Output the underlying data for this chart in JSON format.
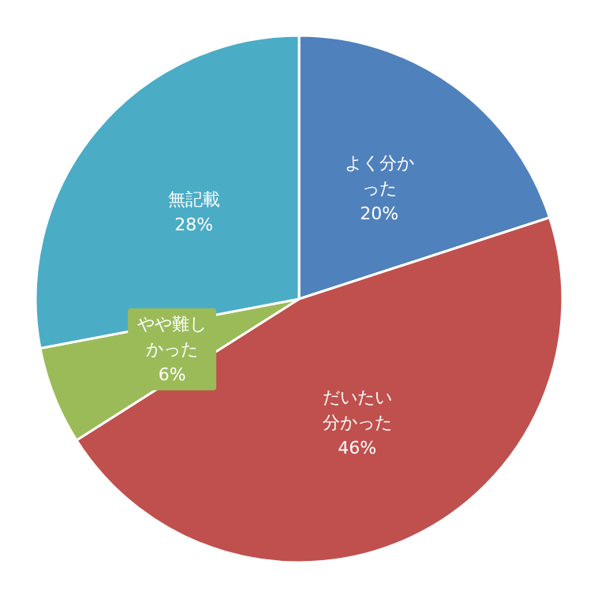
{
  "chart_data": {
    "type": "pie",
    "categories": [
      "よく分かった",
      "だいたい分かった",
      "やや難しかった",
      "無記載"
    ],
    "values": [
      20,
      46,
      6,
      28
    ],
    "value_labels": [
      "20%",
      "46%",
      "6%",
      "28%"
    ],
    "colors": [
      "#4f81bd",
      "#c0504d",
      "#9bbb59",
      "#4bacc6"
    ],
    "legend": false
  }
}
